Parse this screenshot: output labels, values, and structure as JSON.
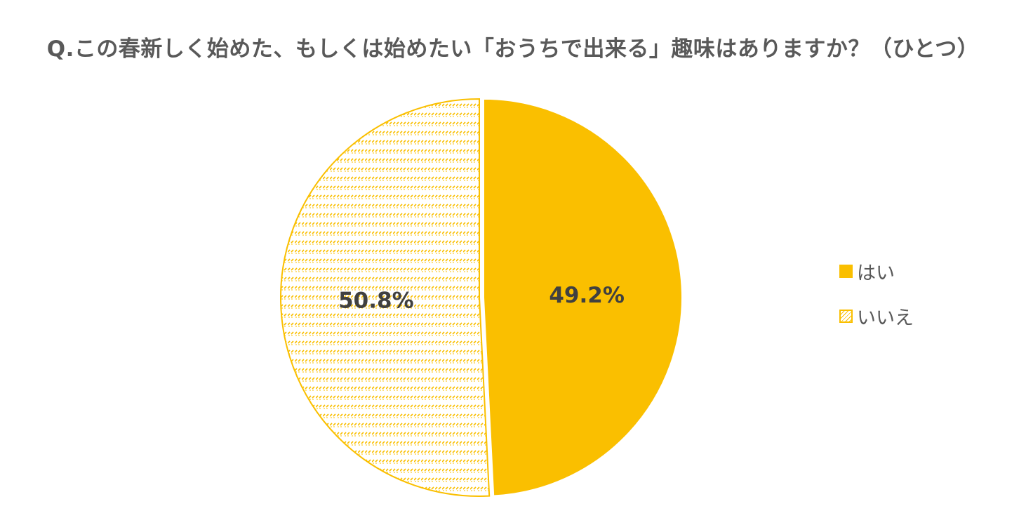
{
  "chart_data": {
    "type": "pie",
    "title": "Q.この春新しく始めた、もしくは始めたい「おうちで出来る」趣味はありますか？（ひとつ）",
    "slices": [
      {
        "name": "はい",
        "value": 49.2,
        "label": "49.2%",
        "color": "#FABF00",
        "fill": "solid"
      },
      {
        "name": "いいえ",
        "value": 50.8,
        "label": "50.8%",
        "color": "#FABF00",
        "fill": "hatched"
      }
    ],
    "legend_position": "right"
  }
}
